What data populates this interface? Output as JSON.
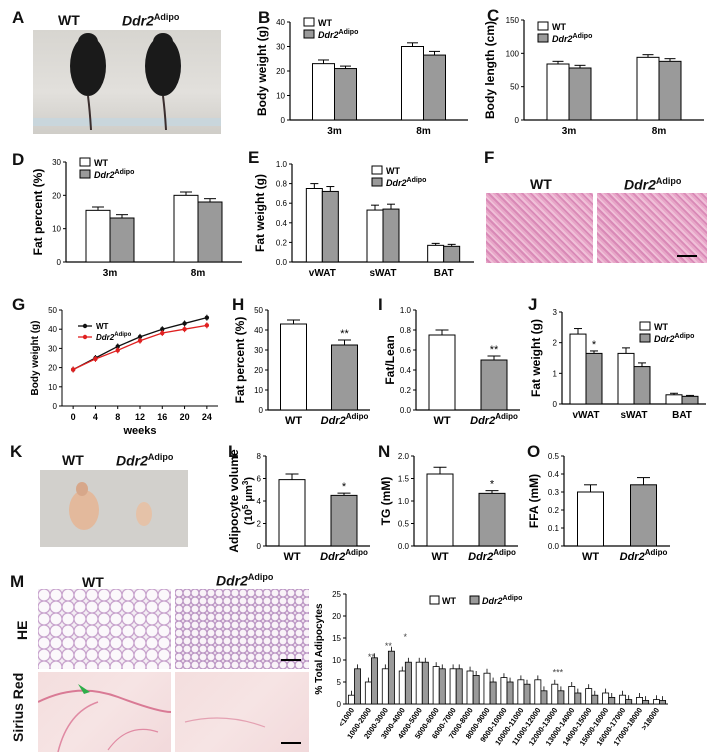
{
  "panels": {
    "A": {
      "label": "A",
      "wt": "WT",
      "ko": "Ddr2",
      "ko_sup": "Adipo"
    },
    "B": {
      "label": "B",
      "ylabel": "Body weight (g)",
      "ticks": [
        "0",
        "10",
        "20",
        "30",
        "40"
      ],
      "legend_wt": "WT",
      "legend_ko": "Ddr2",
      "legend_sup": "Adipo"
    },
    "C": {
      "label": "C",
      "ylabel": "Body length (cm)",
      "ticks": [
        "0",
        "50",
        "100",
        "150"
      ],
      "legend_wt": "WT",
      "legend_ko": "Ddr2",
      "legend_sup": "Adipo"
    },
    "D": {
      "label": "D",
      "ylabel": "Fat percent (%)",
      "ticks": [
        "0",
        "10",
        "20",
        "30"
      ],
      "legend_wt": "WT",
      "legend_ko": "Ddr2",
      "legend_sup": "Adipo"
    },
    "E": {
      "label": "E",
      "ylabel": "Fat weight (g)",
      "ticks": [
        "0.0",
        "0.2",
        "0.4",
        "0.6",
        "0.8",
        "1.0"
      ],
      "legend_wt": "WT",
      "legend_ko": "Ddr2",
      "legend_sup": "Adipo"
    },
    "F": {
      "label": "F",
      "wt": "WT",
      "ko": "Ddr2",
      "ko_sup": "Adipo"
    },
    "G": {
      "label": "G",
      "ylabel": "Body weight (g)",
      "xlabel": "weeks",
      "ticks": [
        "0",
        "10",
        "20",
        "30",
        "40",
        "50"
      ],
      "legend_wt": "WT",
      "legend_ko": "Ddr2",
      "legend_sup": "Adipo"
    },
    "H": {
      "label": "H",
      "ylabel": "Fat percent (%)",
      "ticks": [
        "0",
        "10",
        "20",
        "30",
        "40",
        "50"
      ],
      "star": "**"
    },
    "I": {
      "label": "I",
      "ylabel": "Fat/Lean",
      "ticks": [
        "0.0",
        "0.2",
        "0.4",
        "0.6",
        "0.8",
        "1.0"
      ],
      "star": "**"
    },
    "J": {
      "label": "J",
      "ylabel": "Fat weight (g)",
      "ticks": [
        "0",
        "1",
        "2",
        "3"
      ],
      "star": "*",
      "legend_wt": "WT",
      "legend_ko": "Ddr2",
      "legend_sup": "Adipo"
    },
    "K": {
      "label": "K",
      "wt": "WT",
      "ko": "Ddr2",
      "ko_sup": "Adipo"
    },
    "L": {
      "label": "L",
      "ylabel": "Adipocyte volume",
      "ylabel2": "(10",
      "ylabel2_sup": "5",
      "ylabel2_end": " μm",
      "ylabel2_sup2": "3",
      "ylabel2_close": ")",
      "ticks": [
        "0",
        "2",
        "4",
        "6",
        "8"
      ],
      "star": "*"
    },
    "N": {
      "label": "N",
      "ylabel": "TG (mM)",
      "ticks": [
        "0.0",
        "0.5",
        "1.0",
        "1.5",
        "2.0"
      ],
      "star": "*"
    },
    "O": {
      "label": "O",
      "ylabel": "FFA (mM)",
      "ticks": [
        "0.0",
        "0.1",
        "0.2",
        "0.3",
        "0.4",
        "0.5"
      ]
    },
    "M": {
      "label": "M",
      "wt": "WT",
      "ko": "Ddr2",
      "ko_sup": "Adipo",
      "row1": "HE",
      "row2": "Sirius Red",
      "ylabel": "% Total Adipocytes",
      "ticks": [
        "0",
        "5",
        "10",
        "15",
        "20",
        "25"
      ],
      "legend_wt": "WT",
      "legend_ko": "Ddr2",
      "legend_sup": "Adipo",
      "stars": [
        "**",
        "**",
        "*",
        "***"
      ]
    }
  },
  "chart_data": [
    {
      "type": "bar",
      "panel": "B",
      "categories": [
        "3m",
        "8m"
      ],
      "ylabel": "Body weight (g)",
      "ylim": [
        0,
        40
      ],
      "series": [
        {
          "name": "WT",
          "values": [
            23,
            30
          ],
          "err": [
            1.5,
            1.5
          ]
        },
        {
          "name": "Ddr2Adipo",
          "values": [
            21,
            26.5
          ],
          "err": [
            1,
            1.5
          ]
        }
      ]
    },
    {
      "type": "bar",
      "panel": "C",
      "categories": [
        "3m",
        "8m"
      ],
      "ylabel": "Body length (cm)",
      "ylim": [
        0,
        150
      ],
      "series": [
        {
          "name": "WT",
          "values": [
            84,
            94
          ],
          "err": [
            4,
            4
          ]
        },
        {
          "name": "Ddr2Adipo",
          "values": [
            78,
            88
          ],
          "err": [
            4,
            4
          ]
        }
      ]
    },
    {
      "type": "bar",
      "panel": "D",
      "categories": [
        "3m",
        "8m"
      ],
      "ylabel": "Fat percent (%)",
      "ylim": [
        0,
        30
      ],
      "series": [
        {
          "name": "WT",
          "values": [
            15.5,
            20
          ],
          "err": [
            1,
            1
          ]
        },
        {
          "name": "Ddr2Adipo",
          "values": [
            13.2,
            18
          ],
          "err": [
            1,
            1
          ]
        }
      ]
    },
    {
      "type": "bar",
      "panel": "E",
      "categories": [
        "vWAT",
        "sWAT",
        "BAT"
      ],
      "ylabel": "Fat weight (g)",
      "ylim": [
        0,
        1.0
      ],
      "series": [
        {
          "name": "WT",
          "values": [
            0.75,
            0.53,
            0.17
          ],
          "err": [
            0.05,
            0.05,
            0.02
          ]
        },
        {
          "name": "Ddr2Adipo",
          "values": [
            0.72,
            0.54,
            0.16
          ],
          "err": [
            0.05,
            0.05,
            0.02
          ]
        }
      ]
    },
    {
      "type": "line",
      "panel": "G",
      "x": [
        0,
        4,
        8,
        12,
        16,
        20,
        24
      ],
      "xlabel": "weeks",
      "ylabel": "Body weight (g)",
      "ylim": [
        0,
        50
      ],
      "xlim": [
        -2,
        26
      ],
      "series": [
        {
          "name": "WT",
          "color": "#111111",
          "values": [
            19,
            25,
            31,
            36,
            40,
            43,
            46
          ]
        },
        {
          "name": "Ddr2Adipo",
          "color": "#e02020",
          "values": [
            19,
            24.5,
            29,
            34,
            38,
            40,
            42
          ]
        }
      ]
    },
    {
      "type": "bar",
      "panel": "H",
      "categories": [
        "WT",
        "Ddr2Adipo"
      ],
      "ylabel": "Fat percent (%)",
      "ylim": [
        0,
        50
      ],
      "series": [
        {
          "name": "value",
          "values": [
            43,
            32.5
          ],
          "err": [
            2,
            2.5
          ]
        }
      ]
    },
    {
      "type": "bar",
      "panel": "I",
      "categories": [
        "WT",
        "Ddr2Adipo"
      ],
      "ylabel": "Fat/Lean",
      "ylim": [
        0,
        1.0
      ],
      "series": [
        {
          "name": "value",
          "values": [
            0.75,
            0.5
          ],
          "err": [
            0.05,
            0.04
          ]
        }
      ]
    },
    {
      "type": "bar",
      "panel": "J",
      "categories": [
        "vWAT",
        "sWAT",
        "BAT"
      ],
      "ylabel": "Fat weight (g)",
      "ylim": [
        0,
        3
      ],
      "series": [
        {
          "name": "WT",
          "values": [
            2.28,
            1.65,
            0.3
          ],
          "err": [
            0.18,
            0.18,
            0.05
          ]
        },
        {
          "name": "Ddr2Adipo",
          "values": [
            1.65,
            1.22,
            0.25
          ],
          "err": [
            0.08,
            0.12,
            0.03
          ]
        }
      ]
    },
    {
      "type": "bar",
      "panel": "L",
      "categories": [
        "WT",
        "Ddr2Adipo"
      ],
      "ylabel": "Adipocyte volume (10^5 μm^3)",
      "ylim": [
        0,
        8
      ],
      "series": [
        {
          "name": "value",
          "values": [
            5.9,
            4.5
          ],
          "err": [
            0.5,
            0.2
          ]
        }
      ]
    },
    {
      "type": "bar",
      "panel": "N",
      "categories": [
        "WT",
        "Ddr2Adipo"
      ],
      "ylabel": "TG (mM)",
      "ylim": [
        0,
        2.0
      ],
      "series": [
        {
          "name": "value",
          "values": [
            1.6,
            1.17
          ],
          "err": [
            0.15,
            0.06
          ]
        }
      ]
    },
    {
      "type": "bar",
      "panel": "O",
      "categories": [
        "WT",
        "Ddr2Adipo"
      ],
      "ylabel": "FFA (mM)",
      "ylim": [
        0,
        0.5
      ],
      "series": [
        {
          "name": "value",
          "values": [
            0.3,
            0.34
          ],
          "err": [
            0.04,
            0.04
          ]
        }
      ]
    },
    {
      "type": "bar",
      "panel": "M",
      "ylabel": "% Total Adipocytes",
      "ylim": [
        0,
        25
      ],
      "categories": [
        "<1000",
        "1000-2000",
        "2000-3000",
        "3000-4000",
        "4000-5000",
        "5000-6000",
        "6000-7000",
        "7000-8000",
        "8000-9000",
        "9000-10000",
        "10000-11000",
        "11000-12000",
        "12000-13000",
        "13000-14000",
        "14000-15000",
        "15000-16000",
        "16000-17000",
        "17000-18000",
        ">18000"
      ],
      "series": [
        {
          "name": "WT",
          "values": [
            2,
            5,
            8,
            7.5,
            9.5,
            8.5,
            8,
            7.5,
            7,
            6,
            5.5,
            5.5,
            4.5,
            4,
            3.5,
            2.5,
            2,
            1.5,
            1
          ]
        },
        {
          "name": "Ddr2Adipo",
          "values": [
            8,
            10.5,
            12,
            9.5,
            9.5,
            8,
            8,
            6.5,
            5,
            5,
            4.5,
            3,
            3,
            2.5,
            2,
            1.5,
            1,
            0.8,
            0.8
          ]
        }
      ]
    }
  ]
}
